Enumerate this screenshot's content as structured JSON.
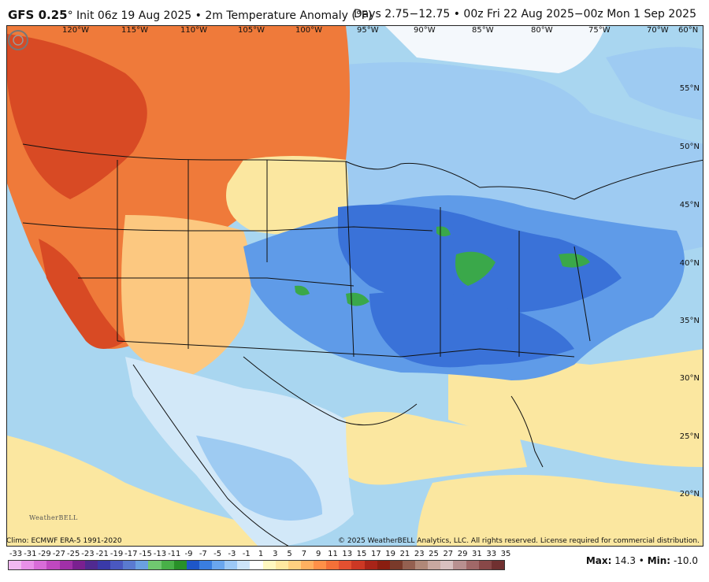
{
  "header": {
    "model": "GFS 0.25",
    "degree": "°",
    "init": "Init 06z 19 Aug 2025",
    "sep": "•",
    "field": "2m Temperature Anomaly (°F)",
    "valid": "Days 2.75−12.75 • 00z Fri 22 Aug 2025−00z Mon 1 Sep 2025"
  },
  "lon_labels": [
    "120°W",
    "115°W",
    "110°W",
    "105°W",
    "100°W",
    "95°W",
    "90°W",
    "85°W",
    "80°W",
    "75°W",
    "70°W",
    "60°N"
  ],
  "lat_labels": [
    "55°N",
    "50°N",
    "45°N",
    "40°N",
    "35°N",
    "30°N",
    "25°N",
    "20°N"
  ],
  "footer": {
    "climo": "Climo: ECMWF ERA-5 1991-2020",
    "copyright": "© 2025 WeatherBELL Analytics, LLC. All rights reserved. License required for commercial distribution.",
    "logo": "WeatherBELL",
    "max_label": "Max:",
    "max_value": "14.3",
    "dot": "•",
    "min_label": "Min:",
    "min_value": "-10.0"
  },
  "scale": {
    "ticks": [
      "-33",
      "-31",
      "-29",
      "-27",
      "-25",
      "-23",
      "-21",
      "-19",
      "-17",
      "-15",
      "-13",
      "-11",
      "-9",
      "-7",
      "-5",
      "-3",
      "-1",
      "1",
      "3",
      "5",
      "7",
      "9",
      "11",
      "13",
      "15",
      "17",
      "19",
      "21",
      "23",
      "25",
      "27",
      "29",
      "31",
      "33",
      "35"
    ],
    "colors": [
      "#f0b8f0",
      "#e890e8",
      "#d86cd8",
      "#c048c0",
      "#a030a8",
      "#7a2090",
      "#502a90",
      "#3a3aa8",
      "#4a58c0",
      "#5a7ad0",
      "#6aa0e0",
      "#70c870",
      "#48b048",
      "#289028",
      "#1e56c8",
      "#3a7ee0",
      "#6aa6ee",
      "#9cc8f6",
      "#cce4fa",
      "#ffffff",
      "#fff8c0",
      "#ffe8a0",
      "#ffd080",
      "#ffb060",
      "#ff9048",
      "#f47038",
      "#e45030",
      "#cc3824",
      "#a82418",
      "#8a1e10",
      "#7a3a2a",
      "#946050",
      "#b08878",
      "#c8a8a0",
      "#d8c0c0",
      "#b89090",
      "#a06868",
      "#884848",
      "#703030"
    ]
  },
  "map_regions": {
    "colors": {
      "hot3": "#d84a24",
      "hot2": "#ef7a3a",
      "hot1": "#f7a058",
      "warm2": "#fcc880",
      "warm1": "#fbe7a0",
      "neutral": "#f4f8fc",
      "cool1": "#d2e8f8",
      "cool2": "#9ecbf2",
      "cool3": "#5f9be8",
      "cool4": "#3a72d8",
      "green": "#3aa84a",
      "ocean": "#a9d6f0"
    }
  }
}
